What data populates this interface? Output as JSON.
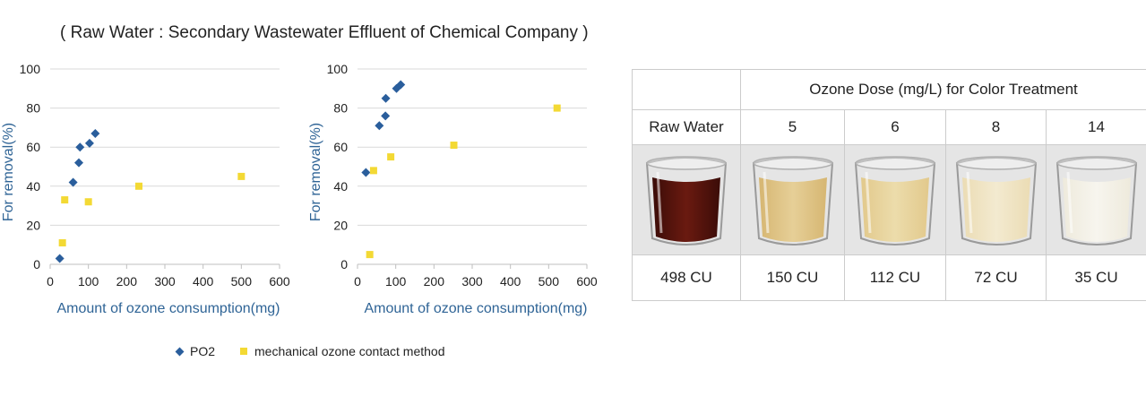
{
  "header_note": "( Raw Water : Secondary Wastewater Effluent of Chemical Company )",
  "legend": {
    "items": [
      {
        "label": "PO2",
        "marker": "diamond",
        "color": "#2a5e9c"
      },
      {
        "label": "mechanical ozone contact method",
        "marker": "square",
        "color": "#f3d934"
      }
    ]
  },
  "chart_data": [
    {
      "type": "scatter",
      "xlabel": "Amount of ozone consumption(mg)",
      "ylabel": "For removal(%)",
      "xlim": [
        0,
        600
      ],
      "ylim": [
        0,
        100
      ],
      "xticks": [
        "0",
        "100",
        "200",
        "300",
        "400",
        "500",
        "600"
      ],
      "yticks": [
        "0",
        "20",
        "40",
        "60",
        "80",
        "100"
      ],
      "grid": "horizontal",
      "series": [
        {
          "name": "PO2",
          "marker": "diamond",
          "color": "#2a5e9c",
          "points": [
            [
              25,
              3
            ],
            [
              60,
              42
            ],
            [
              75,
              52
            ],
            [
              78,
              60
            ],
            [
              103,
              62
            ],
            [
              118,
              67
            ]
          ]
        },
        {
          "name": "mechanical ozone contact method",
          "marker": "square",
          "color": "#f3d934",
          "points": [
            [
              32,
              11
            ],
            [
              38,
              33
            ],
            [
              100,
              32
            ],
            [
              232,
              40
            ],
            [
              500,
              45
            ]
          ]
        }
      ]
    },
    {
      "type": "scatter",
      "xlabel": "Amount of ozone consumption(mg)",
      "ylabel": "For removal(%)",
      "xlim": [
        0,
        600
      ],
      "ylim": [
        0,
        100
      ],
      "xticks": [
        "0",
        "100",
        "200",
        "300",
        "400",
        "500",
        "600"
      ],
      "yticks": [
        "0",
        "20",
        "40",
        "60",
        "80",
        "100"
      ],
      "grid": "horizontal",
      "series": [
        {
          "name": "PO2",
          "marker": "diamond",
          "color": "#2a5e9c",
          "points": [
            [
              22,
              47
            ],
            [
              57,
              71
            ],
            [
              73,
              76
            ],
            [
              74,
              85
            ],
            [
              102,
              90
            ],
            [
              113,
              92
            ]
          ]
        },
        {
          "name": "mechanical ozone contact method",
          "marker": "square",
          "color": "#f3d934",
          "points": [
            [
              32,
              5
            ],
            [
              42,
              48
            ],
            [
              87,
              55
            ],
            [
              252,
              61
            ],
            [
              522,
              80
            ]
          ]
        }
      ]
    }
  ],
  "color_table": {
    "header": "Ozone Dose (mg/L) for Color Treatment",
    "columns": [
      {
        "label": "Raw Water",
        "cu": "498 CU",
        "liquid_color": "#3b0c08",
        "tint_color": "#6a1a10"
      },
      {
        "label": "5",
        "cu": "150 CU",
        "liquid_color": "#d6b672",
        "tint_color": "#e6cf97"
      },
      {
        "label": "6",
        "cu": "112 CU",
        "liquid_color": "#e2c98c",
        "tint_color": "#ecdcab"
      },
      {
        "label": "8",
        "cu": "72 CU",
        "liquid_color": "#ebdcb4",
        "tint_color": "#f3ead0"
      },
      {
        "label": "14",
        "cu": "35 CU",
        "liquid_color": "#eeeadc",
        "tint_color": "#f7f5ee"
      }
    ]
  }
}
